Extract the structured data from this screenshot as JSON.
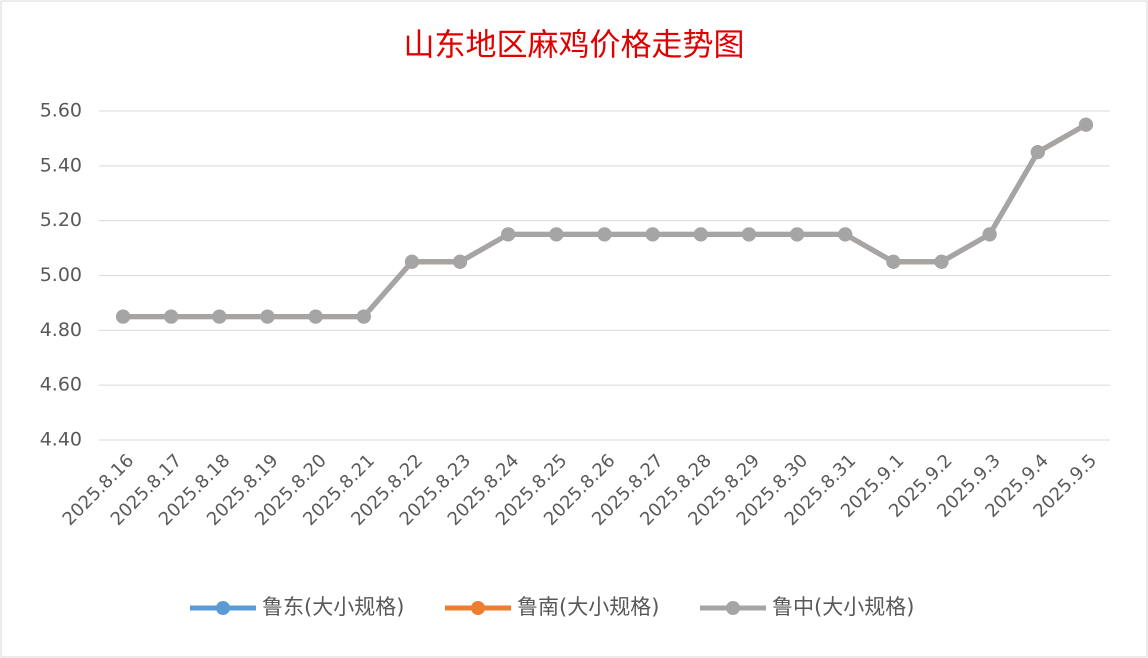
{
  "chart_data": {
    "type": "line",
    "title": "山东地区麻鸡价格走势图",
    "categories": [
      "2025.8.16",
      "2025.8.17",
      "2025.8.18",
      "2025.8.19",
      "2025.8.20",
      "2025.8.21",
      "2025.8.22",
      "2025.8.23",
      "2025.8.24",
      "2025.8.25",
      "2025.8.26",
      "2025.8.27",
      "2025.8.28",
      "2025.8.29",
      "2025.8.30",
      "2025.8.31",
      "2025.9.1",
      "2025.9.2",
      "2025.9.3",
      "2025.9.4",
      "2025.9.5"
    ],
    "series": [
      {
        "name": "鲁东(大小规格)",
        "color": "#5b9bd5",
        "values": [
          4.85,
          4.85,
          4.85,
          4.85,
          4.85,
          4.85,
          5.05,
          5.05,
          5.15,
          5.15,
          5.15,
          5.15,
          5.15,
          5.15,
          5.15,
          5.15,
          5.05,
          5.05,
          5.15,
          5.45,
          5.55
        ]
      },
      {
        "name": "鲁南(大小规格)",
        "color": "#ed7d31",
        "values": [
          4.85,
          4.85,
          4.85,
          4.85,
          4.85,
          4.85,
          5.05,
          5.05,
          5.15,
          5.15,
          5.15,
          5.15,
          5.15,
          5.15,
          5.15,
          5.15,
          5.05,
          5.05,
          5.15,
          5.45,
          5.55
        ]
      },
      {
        "name": "鲁中(大小规格)",
        "color": "#a5a5a5",
        "values": [
          4.85,
          4.85,
          4.85,
          4.85,
          4.85,
          4.85,
          5.05,
          5.05,
          5.15,
          5.15,
          5.15,
          5.15,
          5.15,
          5.15,
          5.15,
          5.15,
          5.05,
          5.05,
          5.15,
          5.45,
          5.55
        ]
      }
    ],
    "ylim": [
      4.4,
      5.6
    ],
    "yticks": [
      {
        "value": 4.4,
        "label": "4.40"
      },
      {
        "value": 4.6,
        "label": "4.60"
      },
      {
        "value": 4.8,
        "label": "4.80"
      },
      {
        "value": 5.0,
        "label": "5.00"
      },
      {
        "value": 5.2,
        "label": "5.20"
      },
      {
        "value": 5.4,
        "label": "5.40"
      },
      {
        "value": 5.6,
        "label": "5.60"
      }
    ],
    "grid": true,
    "legend": "bottom"
  }
}
